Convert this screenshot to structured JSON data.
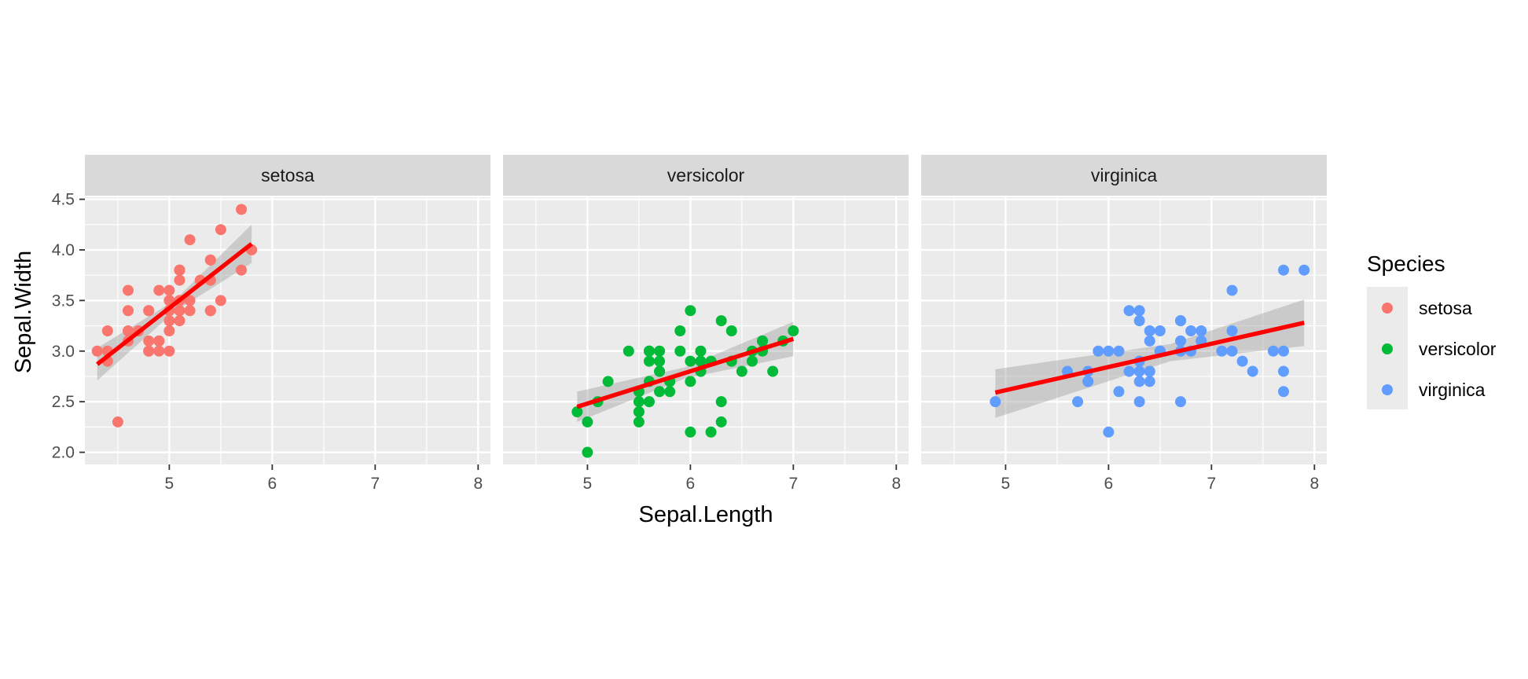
{
  "chart_data": {
    "type": "scatter",
    "xlabel": "Sepal.Length",
    "ylabel": "Sepal.Width",
    "xlim": [
      4.18,
      8.12
    ],
    "ylim": [
      1.88,
      4.52
    ],
    "x_ticks": [
      5,
      6,
      7,
      8
    ],
    "y_ticks": [
      2.0,
      2.5,
      3.0,
      3.5,
      4.0,
      4.5
    ],
    "y_tick_labels": [
      "2.0",
      "2.5",
      "3.0",
      "3.5",
      "4.0",
      "4.5"
    ],
    "x_tick_labels": [
      "5",
      "6",
      "7",
      "8"
    ],
    "grid": true,
    "legend": {
      "title": "Species",
      "position": "right",
      "entries": [
        {
          "label": "setosa",
          "color": "#F8766D"
        },
        {
          "label": "versicolor",
          "color": "#00BA38"
        },
        {
          "label": "virginica",
          "color": "#619CFF"
        }
      ]
    },
    "trend_line_color": "#FF0000",
    "ribbon_color": "#999999",
    "facets": [
      {
        "name": "setosa",
        "color": "#F8766D",
        "fit": {
          "x": [
            4.3,
            5.8
          ],
          "y": [
            2.87,
            4.06
          ]
        },
        "ribbon": {
          "x": [
            4.3,
            5.05,
            5.8
          ],
          "lower": [
            2.71,
            3.39,
            3.87
          ],
          "upper": [
            3.03,
            3.5,
            4.25
          ]
        },
        "points": [
          [
            5.1,
            3.5
          ],
          [
            4.9,
            3.0
          ],
          [
            4.7,
            3.2
          ],
          [
            4.6,
            3.1
          ],
          [
            5.0,
            3.6
          ],
          [
            5.4,
            3.9
          ],
          [
            4.6,
            3.4
          ],
          [
            5.0,
            3.4
          ],
          [
            4.4,
            2.9
          ],
          [
            4.9,
            3.1
          ],
          [
            5.4,
            3.7
          ],
          [
            4.8,
            3.4
          ],
          [
            4.8,
            3.0
          ],
          [
            4.3,
            3.0
          ],
          [
            5.8,
            4.0
          ],
          [
            5.7,
            4.4
          ],
          [
            5.4,
            3.9
          ],
          [
            5.1,
            3.5
          ],
          [
            5.7,
            3.8
          ],
          [
            5.1,
            3.8
          ],
          [
            5.4,
            3.4
          ],
          [
            5.1,
            3.7
          ],
          [
            4.6,
            3.6
          ],
          [
            5.1,
            3.3
          ],
          [
            4.8,
            3.4
          ],
          [
            5.0,
            3.0
          ],
          [
            5.0,
            3.4
          ],
          [
            5.2,
            3.5
          ],
          [
            5.2,
            3.4
          ],
          [
            4.7,
            3.2
          ],
          [
            4.8,
            3.1
          ],
          [
            5.4,
            3.4
          ],
          [
            5.2,
            4.1
          ],
          [
            5.5,
            4.2
          ],
          [
            4.9,
            3.1
          ],
          [
            5.0,
            3.2
          ],
          [
            5.5,
            3.5
          ],
          [
            4.9,
            3.6
          ],
          [
            4.4,
            3.0
          ],
          [
            5.1,
            3.4
          ],
          [
            5.0,
            3.5
          ],
          [
            4.5,
            2.3
          ],
          [
            4.4,
            3.2
          ],
          [
            5.0,
            3.5
          ],
          [
            5.1,
            3.8
          ],
          [
            4.8,
            3.0
          ],
          [
            5.1,
            3.8
          ],
          [
            4.6,
            3.2
          ],
          [
            5.3,
            3.7
          ],
          [
            5.0,
            3.3
          ]
        ]
      },
      {
        "name": "versicolor",
        "color": "#00BA38",
        "fit": {
          "x": [
            4.9,
            7.0
          ],
          "y": [
            2.45,
            3.12
          ]
        },
        "ribbon": {
          "x": [
            4.9,
            5.95,
            7.0
          ],
          "lower": [
            2.3,
            2.73,
            2.95
          ],
          "upper": [
            2.6,
            2.84,
            3.29
          ]
        },
        "points": [
          [
            7.0,
            3.2
          ],
          [
            6.4,
            3.2
          ],
          [
            6.9,
            3.1
          ],
          [
            5.5,
            2.3
          ],
          [
            6.5,
            2.8
          ],
          [
            5.7,
            2.8
          ],
          [
            6.3,
            3.3
          ],
          [
            4.9,
            2.4
          ],
          [
            6.6,
            2.9
          ],
          [
            5.2,
            2.7
          ],
          [
            5.0,
            2.0
          ],
          [
            5.9,
            3.0
          ],
          [
            6.0,
            2.2
          ],
          [
            6.1,
            2.9
          ],
          [
            5.6,
            2.9
          ],
          [
            6.7,
            3.1
          ],
          [
            5.6,
            3.0
          ],
          [
            5.8,
            2.7
          ],
          [
            6.2,
            2.2
          ],
          [
            5.6,
            2.5
          ],
          [
            5.9,
            3.2
          ],
          [
            6.1,
            2.8
          ],
          [
            6.3,
            2.5
          ],
          [
            6.1,
            2.8
          ],
          [
            6.4,
            2.9
          ],
          [
            6.6,
            3.0
          ],
          [
            6.8,
            2.8
          ],
          [
            6.7,
            3.0
          ],
          [
            6.0,
            2.9
          ],
          [
            5.7,
            2.6
          ],
          [
            5.5,
            2.4
          ],
          [
            5.5,
            2.4
          ],
          [
            5.8,
            2.7
          ],
          [
            6.0,
            2.7
          ],
          [
            5.4,
            3.0
          ],
          [
            6.0,
            3.4
          ],
          [
            6.7,
            3.1
          ],
          [
            6.3,
            2.3
          ],
          [
            5.6,
            3.0
          ],
          [
            5.5,
            2.5
          ],
          [
            5.5,
            2.6
          ],
          [
            6.1,
            3.0
          ],
          [
            5.8,
            2.6
          ],
          [
            5.0,
            2.3
          ],
          [
            5.6,
            2.7
          ],
          [
            5.7,
            3.0
          ],
          [
            5.7,
            2.9
          ],
          [
            6.2,
            2.9
          ],
          [
            5.1,
            2.5
          ],
          [
            5.7,
            2.8
          ]
        ]
      },
      {
        "name": "virginica",
        "color": "#619CFF",
        "fit": {
          "x": [
            4.9,
            7.9
          ],
          "y": [
            2.59,
            3.28
          ]
        },
        "ribbon": {
          "x": [
            4.9,
            6.6,
            7.9
          ],
          "lower": [
            2.34,
            2.9,
            3.05
          ],
          "upper": [
            2.82,
            3.07,
            3.51
          ]
        },
        "points": [
          [
            6.3,
            3.3
          ],
          [
            5.8,
            2.7
          ],
          [
            7.1,
            3.0
          ],
          [
            6.3,
            2.9
          ],
          [
            6.5,
            3.0
          ],
          [
            7.6,
            3.0
          ],
          [
            4.9,
            2.5
          ],
          [
            7.3,
            2.9
          ],
          [
            6.7,
            2.5
          ],
          [
            7.2,
            3.6
          ],
          [
            6.5,
            3.2
          ],
          [
            6.4,
            2.7
          ],
          [
            6.8,
            3.0
          ],
          [
            5.7,
            2.5
          ],
          [
            5.8,
            2.8
          ],
          [
            6.4,
            3.2
          ],
          [
            6.5,
            3.0
          ],
          [
            7.7,
            3.8
          ],
          [
            7.7,
            2.6
          ],
          [
            6.0,
            2.2
          ],
          [
            6.9,
            3.2
          ],
          [
            5.6,
            2.8
          ],
          [
            7.7,
            2.8
          ],
          [
            6.3,
            2.7
          ],
          [
            6.7,
            3.3
          ],
          [
            7.2,
            3.2
          ],
          [
            6.2,
            2.8
          ],
          [
            6.1,
            3.0
          ],
          [
            6.4,
            2.8
          ],
          [
            7.2,
            3.0
          ],
          [
            7.4,
            2.8
          ],
          [
            7.9,
            3.8
          ],
          [
            6.4,
            2.8
          ],
          [
            6.3,
            2.8
          ],
          [
            6.1,
            2.6
          ],
          [
            7.7,
            3.0
          ],
          [
            6.3,
            3.4
          ],
          [
            6.4,
            3.1
          ],
          [
            6.0,
            3.0
          ],
          [
            6.9,
            3.1
          ],
          [
            6.7,
            3.1
          ],
          [
            6.9,
            3.1
          ],
          [
            5.8,
            2.7
          ],
          [
            6.8,
            3.2
          ],
          [
            6.7,
            3.3
          ],
          [
            6.7,
            3.0
          ],
          [
            6.3,
            2.5
          ],
          [
            6.5,
            3.0
          ],
          [
            6.2,
            3.4
          ],
          [
            5.9,
            3.0
          ]
        ]
      }
    ]
  }
}
